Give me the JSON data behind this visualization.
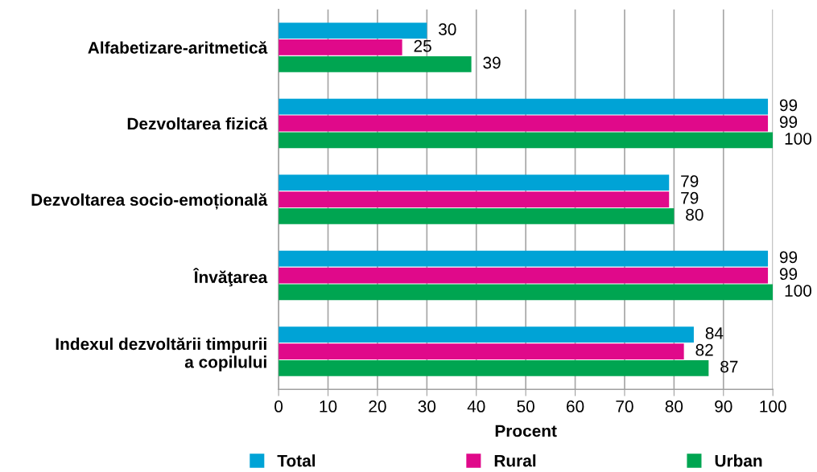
{
  "chart_data": {
    "type": "bar",
    "orientation": "horizontal",
    "xlabel": "Procent",
    "categories": [
      "Alfabetizare-aritmetică",
      "Dezvoltarea fizică",
      "Dezvoltarea socio-emoțională",
      "Învăţarea",
      "Indexul dezvoltării timpurii\na copilului"
    ],
    "series": [
      {
        "name": "Total",
        "color": "#00a3d6",
        "values": [
          30,
          99,
          79,
          99,
          84
        ]
      },
      {
        "name": "Rural",
        "color": "#e0098a",
        "values": [
          25,
          99,
          79,
          99,
          82
        ]
      },
      {
        "name": "Urban",
        "color": "#00a551",
        "values": [
          39,
          100,
          80,
          100,
          87
        ]
      }
    ],
    "xlim": [
      0,
      100
    ],
    "xticks": [
      0,
      10,
      20,
      30,
      40,
      50,
      60,
      70,
      80,
      90,
      100
    ],
    "grid": "x",
    "legend": "bottom",
    "data_labels": true
  }
}
